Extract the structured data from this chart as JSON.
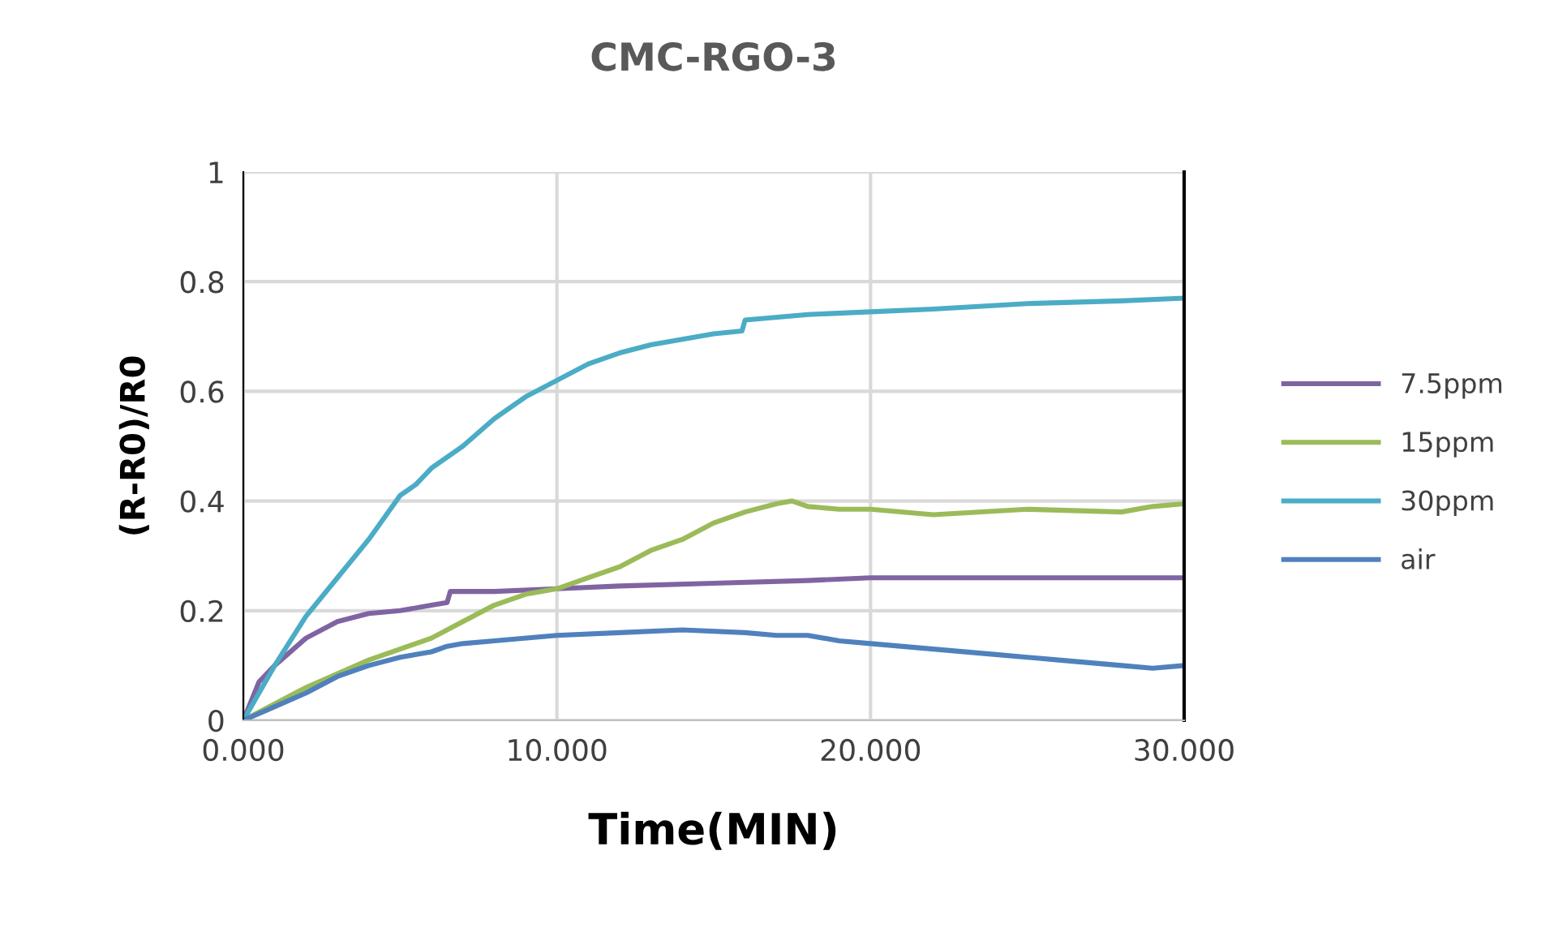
{
  "chart_data": {
    "type": "line",
    "title": "CMC-RGO-3",
    "xlabel": "Time(MIN)",
    "ylabel": "(R-R0)/R0",
    "xlim": [
      0,
      30
    ],
    "xticks": [
      {
        "value": 0,
        "label": "0.000"
      },
      {
        "value": 10,
        "label": "10.000"
      },
      {
        "value": 20,
        "label": "20.000"
      },
      {
        "value": 30,
        "label": "30.000"
      }
    ],
    "ylim": [
      0,
      1
    ],
    "yticks": [
      0,
      0.2,
      0.4,
      0.6,
      0.8,
      1
    ],
    "grid": true,
    "legend": "right",
    "marker": "none",
    "line_style": "solid",
    "series": [
      {
        "name": "7.5ppm",
        "color": "#8064a2",
        "x": [
          0,
          0.5,
          1,
          2,
          3,
          4,
          5,
          6,
          6.5,
          6.6,
          8,
          10,
          12,
          15,
          18,
          20,
          25,
          30
        ],
        "values": [
          0,
          0.07,
          0.1,
          0.15,
          0.18,
          0.195,
          0.2,
          0.21,
          0.215,
          0.235,
          0.235,
          0.24,
          0.245,
          0.25,
          0.255,
          0.26,
          0.26,
          0.26
        ]
      },
      {
        "name": "15ppm",
        "color": "#9bbb59",
        "x": [
          0,
          1,
          2,
          3,
          4,
          5,
          6,
          7,
          8,
          9,
          10,
          11,
          12,
          13,
          14,
          15,
          16,
          17,
          17.5,
          18,
          19,
          20,
          22,
          25,
          28,
          29,
          30
        ],
        "values": [
          0,
          0.03,
          0.06,
          0.085,
          0.11,
          0.13,
          0.15,
          0.18,
          0.21,
          0.23,
          0.24,
          0.26,
          0.28,
          0.31,
          0.33,
          0.36,
          0.38,
          0.395,
          0.4,
          0.39,
          0.385,
          0.385,
          0.375,
          0.385,
          0.38,
          0.39,
          0.395
        ]
      },
      {
        "name": "30ppm",
        "color": "#4bacc6",
        "x": [
          0,
          0.5,
          1,
          2,
          3,
          4,
          5,
          5.5,
          6,
          7,
          8,
          9,
          10,
          11,
          12,
          13,
          14,
          15,
          15.9,
          16,
          18,
          20,
          22,
          25,
          28,
          30
        ],
        "values": [
          0,
          0.05,
          0.1,
          0.19,
          0.26,
          0.33,
          0.41,
          0.43,
          0.46,
          0.5,
          0.55,
          0.59,
          0.62,
          0.65,
          0.67,
          0.685,
          0.695,
          0.705,
          0.71,
          0.73,
          0.74,
          0.745,
          0.75,
          0.76,
          0.765,
          0.77
        ]
      },
      {
        "name": "air",
        "color": "#4f81bd",
        "x": [
          0,
          1,
          2,
          3,
          4,
          5,
          6,
          6.5,
          7,
          8,
          10,
          12,
          14,
          16,
          17,
          18,
          19,
          20,
          22,
          24,
          26,
          28,
          29,
          30
        ],
        "values": [
          0,
          0.025,
          0.05,
          0.08,
          0.1,
          0.115,
          0.125,
          0.135,
          0.14,
          0.145,
          0.155,
          0.16,
          0.165,
          0.16,
          0.155,
          0.155,
          0.145,
          0.14,
          0.13,
          0.12,
          0.11,
          0.1,
          0.095,
          0.1
        ]
      }
    ]
  }
}
